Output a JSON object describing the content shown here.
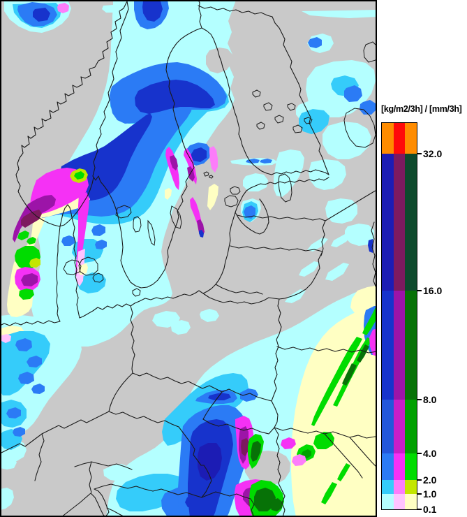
{
  "legend": {
    "title": "[kg/m2/3h] / [mm/3h]",
    "tick_labels": [
      "32.0",
      "16.0",
      "8.0",
      "4.0",
      "2.0",
      "1.0",
      "0.1"
    ],
    "bands": [
      {
        "colors": [
          "#FF8C00",
          "#FF0A0A",
          "#FF8C00"
        ]
      },
      {
        "colors": [
          "#1C1CB4",
          "#7D1A5F",
          "#0E4A2D"
        ]
      },
      {
        "colors": [
          "#1733CC",
          "#9C14A8",
          "#077207"
        ]
      },
      {
        "colors": [
          "#2357DB",
          "#C81EC8",
          "#00A000"
        ]
      },
      {
        "colors": [
          "#2B7BF5",
          "#F531F5",
          "#00DC00"
        ]
      },
      {
        "colors": [
          "#35CCFA",
          "#FC7DFA",
          "#C3E600"
        ]
      },
      {
        "colors": [
          "#B4FFFF",
          "#FFC3FF",
          "#FFFFC3"
        ]
      }
    ]
  },
  "map": {
    "background": "#C9C9C9",
    "line_color": "#000000",
    "frame_color": "#000000"
  }
}
